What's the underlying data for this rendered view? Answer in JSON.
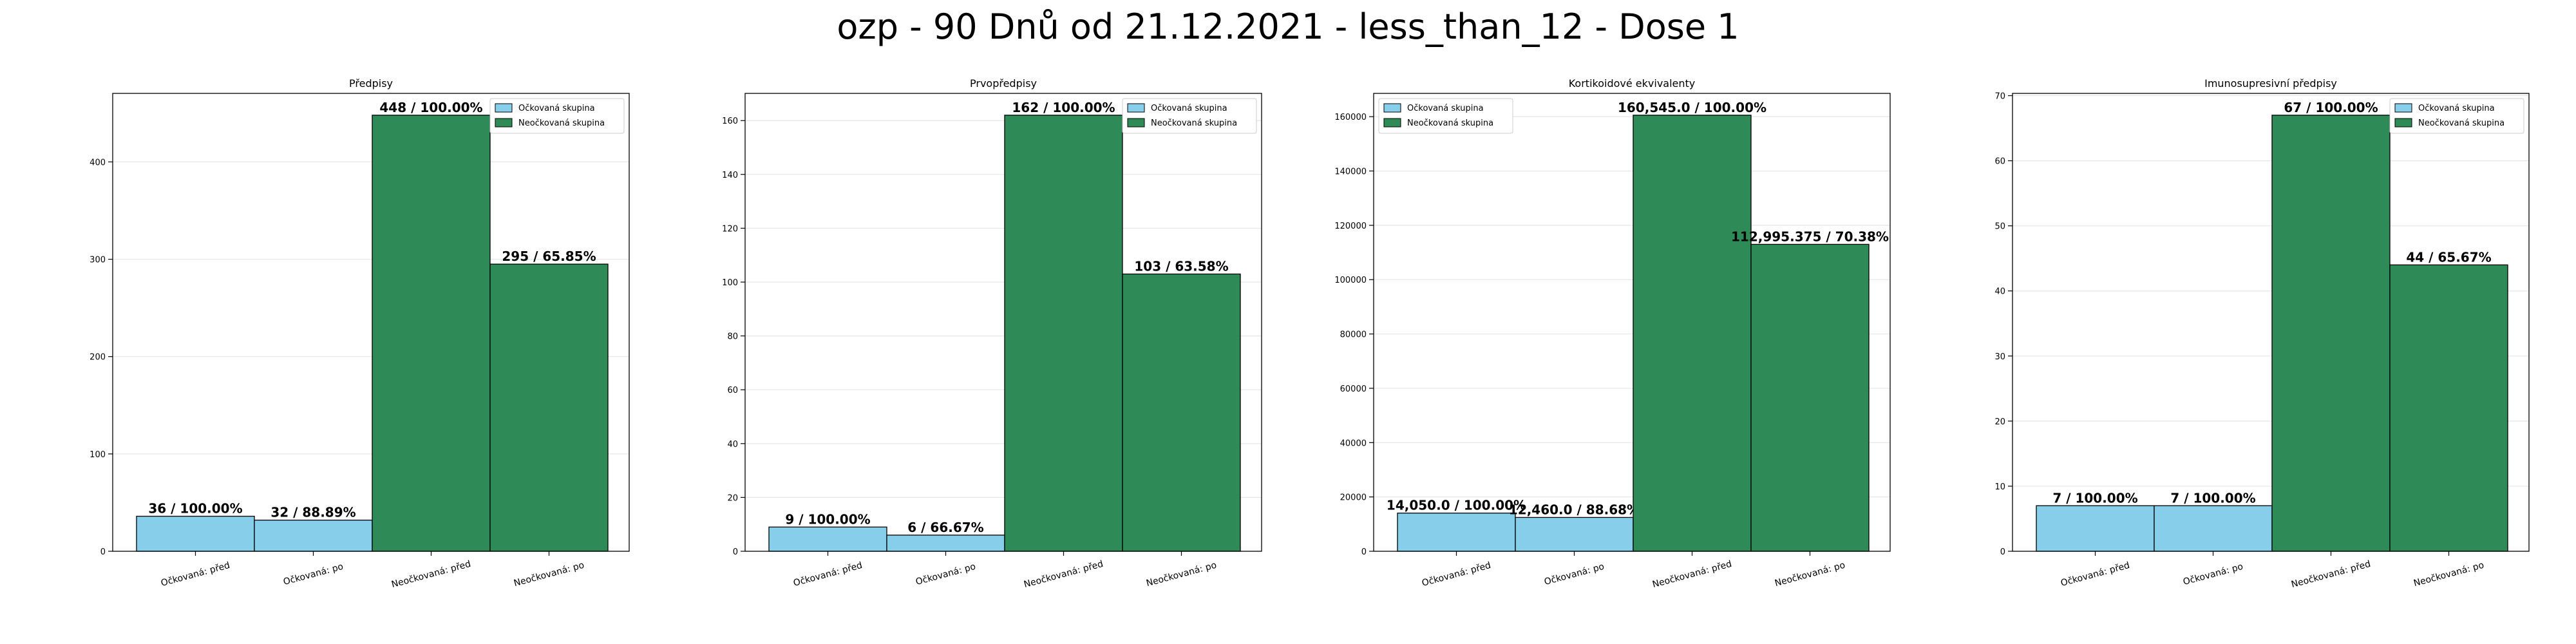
{
  "suptitle": "ozp - 90 Dnů od 21.12.2021 - less_than_12 - Dose 1",
  "colors": {
    "vaccinated": "#87ceeb",
    "unvaccinated": "#2e8b57",
    "grid": "#e6e6e6"
  },
  "legend": {
    "vaccinated": "Očkovaná skupina",
    "unvaccinated": "Neočkovaná skupina"
  },
  "chart_data": [
    {
      "type": "bar",
      "title": "Předpisy",
      "categories": [
        "Očkovaná: před",
        "Očkovaná: po",
        "Neočkovaná: před",
        "Neočkovaná: po"
      ],
      "values": [
        36,
        32,
        448,
        295
      ],
      "groups": [
        "vaccinated",
        "vaccinated",
        "unvaccinated",
        "unvaccinated"
      ],
      "data_labels": [
        "36 / 100.00%",
        "32 / 88.89%",
        "448 / 100.00%",
        "295 / 65.85%"
      ],
      "ylim": [
        0,
        470.4
      ],
      "yticks": [
        0,
        100,
        200,
        300,
        400
      ],
      "ytick_labels": [
        "0",
        "100",
        "200",
        "300",
        "400"
      ],
      "legend_position": "upper right",
      "grid": true
    },
    {
      "type": "bar",
      "title": "Prvopředpisy",
      "categories": [
        "Očkovaná: před",
        "Očkovaná: po",
        "Neočkovaná: před",
        "Neočkovaná: po"
      ],
      "values": [
        9,
        6,
        162,
        103
      ],
      "groups": [
        "vaccinated",
        "vaccinated",
        "unvaccinated",
        "unvaccinated"
      ],
      "data_labels": [
        "9 / 100.00%",
        "6 / 66.67%",
        "162 / 100.00%",
        "103 / 63.58%"
      ],
      "ylim": [
        0,
        170.1
      ],
      "yticks": [
        0,
        20,
        40,
        60,
        80,
        100,
        120,
        140,
        160
      ],
      "ytick_labels": [
        "0",
        "20",
        "40",
        "60",
        "80",
        "100",
        "120",
        "140",
        "160"
      ],
      "legend_position": "upper right",
      "grid": true
    },
    {
      "type": "bar",
      "title": "Kortikoidové ekvivalenty",
      "categories": [
        "Očkovaná: před",
        "Očkovaná: po",
        "Neočkovaná: před",
        "Neočkovaná: po"
      ],
      "values": [
        14050.0,
        12460.0,
        160545.0,
        112995.375
      ],
      "groups": [
        "vaccinated",
        "vaccinated",
        "unvaccinated",
        "unvaccinated"
      ],
      "data_labels": [
        "14,050.0 / 100.00%",
        "12,460.0 / 88.68%",
        "160,545.0 / 100.00%",
        "112,995.375 / 70.38%"
      ],
      "ylim": [
        0,
        168572
      ],
      "yticks": [
        0,
        20000,
        40000,
        60000,
        80000,
        100000,
        120000,
        140000,
        160000
      ],
      "ytick_labels": [
        "0",
        "20000",
        "40000",
        "60000",
        "80000",
        "100000",
        "120000",
        "140000",
        "160000"
      ],
      "legend_position": "upper left",
      "grid": true
    },
    {
      "type": "bar",
      "title": "Imunosupresivní předpisy",
      "categories": [
        "Očkovaná: před",
        "Očkovaná: po",
        "Neočkovaná: před",
        "Neočkovaná: po"
      ],
      "values": [
        7,
        7,
        67,
        44
      ],
      "groups": [
        "vaccinated",
        "vaccinated",
        "unvaccinated",
        "unvaccinated"
      ],
      "data_labels": [
        "7 / 100.00%",
        "7 / 100.00%",
        "67 / 100.00%",
        "44 / 65.67%"
      ],
      "ylim": [
        0,
        70.35
      ],
      "yticks": [
        0,
        10,
        20,
        30,
        40,
        50,
        60,
        70
      ],
      "ytick_labels": [
        "0",
        "10",
        "20",
        "30",
        "40",
        "50",
        "60",
        "70"
      ],
      "legend_position": "upper right",
      "grid": true
    }
  ]
}
